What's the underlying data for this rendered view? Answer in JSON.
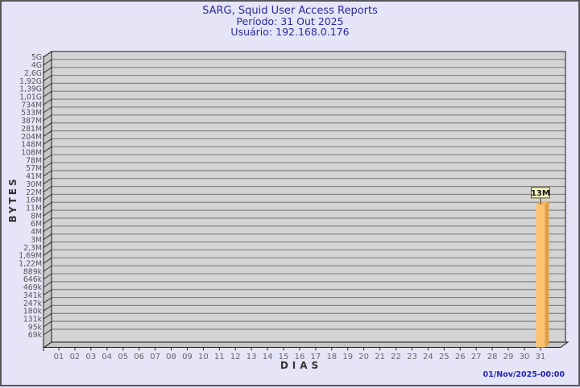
{
  "header": {
    "title": "SARG, Squid User Access Reports",
    "period_line": "Período: 31 Out 2025",
    "user_line": "Usuário: 192.168.0.176"
  },
  "footer": {
    "generated_at": "01/Nov/2025-00:00"
  },
  "chart_data": {
    "type": "bar",
    "title": "SARG, Squid User Access Reports",
    "subtitle_lines": [
      "Período: 31 Out 2025",
      "Usuário: 192.168.0.176"
    ],
    "xlabel": "DIAS",
    "ylabel": "BYTES",
    "y_scale": "log",
    "grid": true,
    "style": "3d-bar",
    "y_tick_labels": [
      "5G",
      "4G",
      "2,6G",
      "1,92G",
      "1,39G",
      "1,01G",
      "734M",
      "533M",
      "387M",
      "281M",
      "204M",
      "148M",
      "108M",
      "78M",
      "57M",
      "41M",
      "30M",
      "22M",
      "16M",
      "11M",
      "8M",
      "6M",
      "4M",
      "3M",
      "2,3M",
      "1,69M",
      "1,22M",
      "889k",
      "646k",
      "469k",
      "341k",
      "247k",
      "180k",
      "131k",
      "95k",
      "69k"
    ],
    "x_tick_labels": [
      "01",
      "02",
      "03",
      "04",
      "05",
      "06",
      "07",
      "08",
      "09",
      "10",
      "11",
      "12",
      "13",
      "14",
      "15",
      "16",
      "17",
      "18",
      "19",
      "20",
      "21",
      "22",
      "23",
      "24",
      "25",
      "26",
      "27",
      "28",
      "29",
      "30",
      "31"
    ],
    "bars": [
      {
        "day": 31,
        "value_label": "13M",
        "value_bytes": 13000000
      }
    ],
    "colors": {
      "page_bg": "#E5E5F7",
      "frame_border": "#58585A",
      "plot_bg": "#D4D4D4",
      "wall": "#C6C6C6",
      "grid_line": "#767676",
      "axis_line": "#1A1A1A",
      "tick_text": "#555555",
      "bar_front": "#FFC272",
      "bar_side": "#DFA143",
      "bar_top": "#F0B457",
      "annotation_bg": "#FCF9C5",
      "annotation_border": "#555500",
      "title_text": "#2A2A9E",
      "timestamp_text": "#2222BE"
    }
  }
}
